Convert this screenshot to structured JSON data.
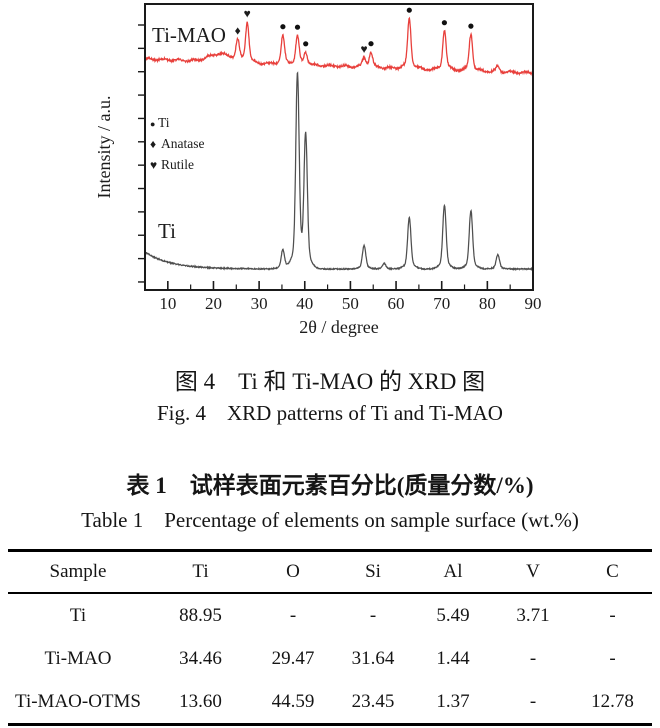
{
  "figure": {
    "label_timao": "Ti-MAO",
    "label_ti": "Ti",
    "xlabel": "2θ / degree",
    "ylabel": "Intensity / a.u.",
    "x_ticks": [
      10,
      20,
      30,
      40,
      50,
      60,
      70,
      80,
      90
    ],
    "legend": [
      {
        "symbol": "●",
        "label": "Ti"
      },
      {
        "symbol": "♦",
        "label": "Anatase"
      },
      {
        "symbol": "♥",
        "label": "Rutile"
      }
    ],
    "colors": {
      "timao": "#e8403c",
      "ti": "#4f4f4f",
      "axis": "#1a1a1a"
    },
    "chart_data": {
      "type": "line",
      "title": "XRD patterns of Ti and Ti-MAO",
      "xlabel": "2θ / degree",
      "ylabel": "Intensity / a.u.",
      "xlim": [
        5,
        90
      ],
      "x_ticks": [
        10,
        20,
        30,
        40,
        50,
        60,
        70,
        80,
        90
      ],
      "legend_position": "inside-left",
      "grid": false,
      "marker_symbols": {
        "Ti": "●",
        "anatase": "♦",
        "rutile": "♥"
      },
      "series": [
        {
          "name": "Ti-MAO",
          "color": "#e8403c",
          "peaks": [
            {
              "two_theta": 25.3,
              "phase": "anatase",
              "rel_intensity": 18,
              "marker": true
            },
            {
              "two_theta": 27.4,
              "phase": "rutile",
              "rel_intensity": 36,
              "marker": true
            },
            {
              "two_theta": 35.2,
              "phase": "Ti",
              "rel_intensity": 25,
              "marker": true
            },
            {
              "two_theta": 38.4,
              "phase": "Ti",
              "rel_intensity": 25,
              "marker": true
            },
            {
              "two_theta": 40.2,
              "phase": "Ti",
              "rel_intensity": 11,
              "marker": true
            },
            {
              "two_theta": 53.0,
              "phase": "rutile",
              "rel_intensity": 8,
              "marker": true
            },
            {
              "two_theta": 54.5,
              "phase": "Ti",
              "rel_intensity": 13,
              "marker": true
            },
            {
              "two_theta": 62.9,
              "phase": "Ti",
              "rel_intensity": 45,
              "marker": true
            },
            {
              "two_theta": 70.6,
              "phase": "Ti",
              "rel_intensity": 36,
              "marker": true
            },
            {
              "two_theta": 76.4,
              "phase": "Ti",
              "rel_intensity": 33,
              "marker": true
            },
            {
              "two_theta": 82.3,
              "phase": "Ti",
              "rel_intensity": 5,
              "marker": false
            }
          ]
        },
        {
          "name": "Ti",
          "color": "#4f4f4f",
          "peaks": [
            {
              "two_theta": 35.2,
              "phase": "Ti",
              "rel_intensity": 17,
              "marker": false
            },
            {
              "two_theta": 38.4,
              "phase": "Ti",
              "rel_intensity": 172,
              "marker": false
            },
            {
              "two_theta": 40.2,
              "phase": "Ti",
              "rel_intensity": 117,
              "marker": false
            },
            {
              "two_theta": 53.0,
              "phase": "Ti",
              "rel_intensity": 21,
              "marker": false
            },
            {
              "two_theta": 57.4,
              "phase": "Ti",
              "rel_intensity": 5,
              "marker": false
            },
            {
              "two_theta": 62.9,
              "phase": "Ti",
              "rel_intensity": 46,
              "marker": false
            },
            {
              "two_theta": 70.6,
              "phase": "Ti",
              "rel_intensity": 57,
              "marker": false
            },
            {
              "two_theta": 76.4,
              "phase": "Ti",
              "rel_intensity": 52,
              "marker": false
            },
            {
              "two_theta": 82.3,
              "phase": "Ti",
              "rel_intensity": 13,
              "marker": false
            }
          ]
        }
      ]
    }
  },
  "captions": {
    "figure_cn": "图 4 Ti 和 Ti-MAO 的 XRD 图",
    "figure_en": "Fig. 4 XRD patterns of Ti and Ti-MAO"
  },
  "table": {
    "title_cn": "表 1 试样表面元素百分比(质量分数/%)",
    "title_en": "Table 1 Percentage of elements on sample surface (wt.%)",
    "columns": [
      "Sample",
      "Ti",
      "O",
      "Si",
      "Al",
      "V",
      "C"
    ],
    "rows": [
      [
        "Ti",
        "88.95",
        "-",
        "-",
        "5.49",
        "3.71",
        "-"
      ],
      [
        "Ti-MAO",
        "34.46",
        "29.47",
        "31.64",
        "1.44",
        "-",
        "-"
      ],
      [
        "Ti-MAO-OTMS",
        "13.60",
        "44.59",
        "23.45",
        "1.37",
        "-",
        "12.78"
      ]
    ]
  }
}
